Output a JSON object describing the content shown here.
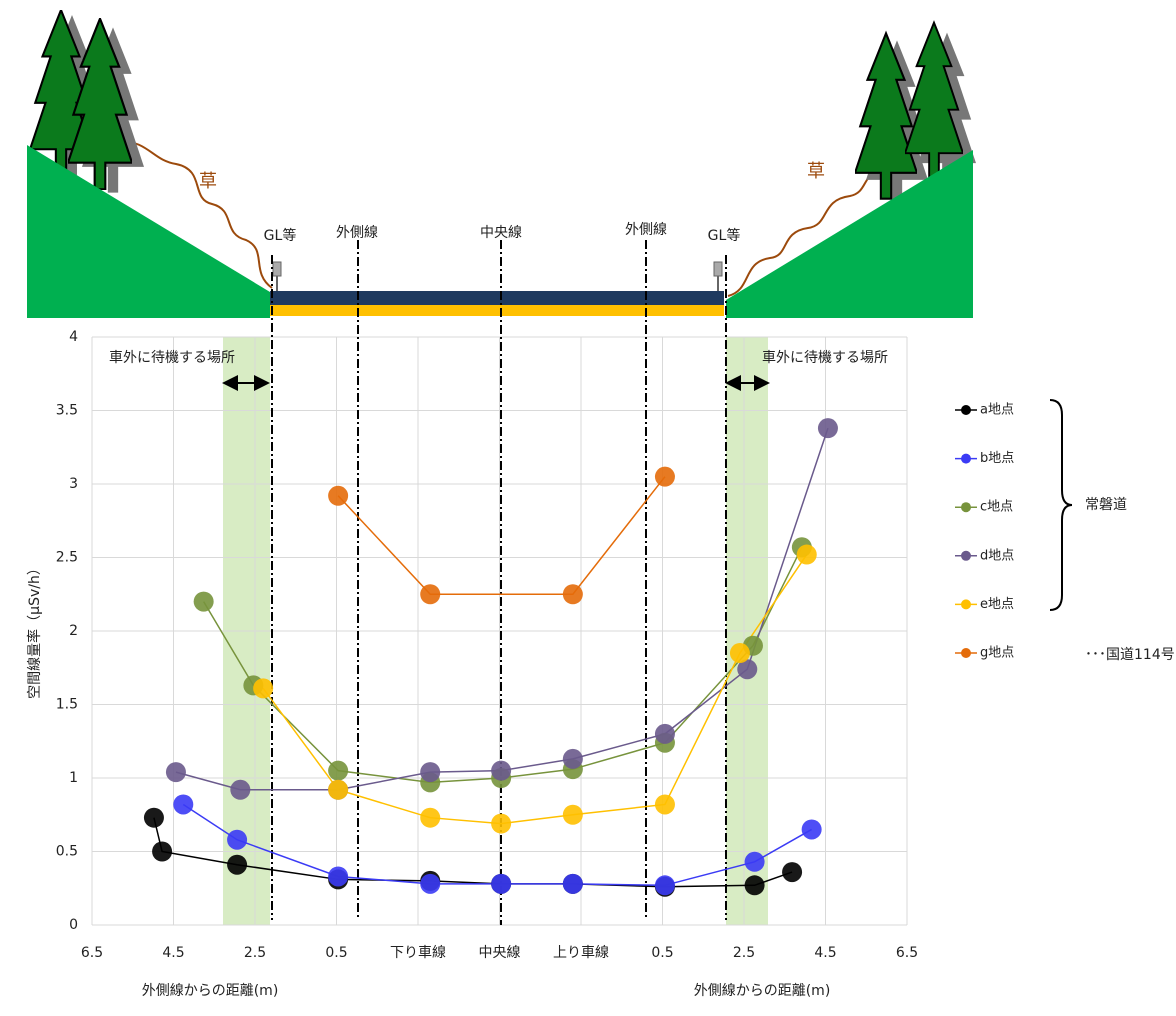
{
  "chart_data": {
    "type": "line",
    "y_label": "空間線量率（μSv/h）",
    "x_labels": [
      "外側線からの距離(m)",
      "外側線からの距離(m)"
    ],
    "xlim": [
      0,
      10
    ],
    "xticks": [
      {
        "value": 0,
        "label": "6.5"
      },
      {
        "value": 1,
        "label": "4.5"
      },
      {
        "value": 2,
        "label": "2.5"
      },
      {
        "value": 3,
        "label": "0.5"
      },
      {
        "value": 4,
        "label": "下り車線"
      },
      {
        "value": 5,
        "label": "中央線"
      },
      {
        "value": 6,
        "label": "上り車線"
      },
      {
        "value": 7,
        "label": "0.5"
      },
      {
        "value": 8,
        "label": "2.5"
      },
      {
        "value": 9,
        "label": "4.5"
      },
      {
        "value": 10,
        "label": "6.5"
      }
    ],
    "ylim": [
      0,
      4
    ],
    "yticks": [
      0,
      0.5,
      1,
      1.5,
      2,
      2.5,
      3,
      3.5,
      4
    ],
    "grid": true,
    "series": [
      {
        "name": "a地点",
        "color": "#000000",
        "x": [
          0.76,
          0.86,
          1.78,
          3.02,
          4.15,
          5.02,
          5.9,
          7.03,
          8.13,
          8.59
        ],
        "values": [
          0.73,
          0.5,
          0.41,
          0.31,
          0.3,
          0.28,
          0.28,
          0.26,
          0.27,
          0.36
        ]
      },
      {
        "name": "b地点",
        "color": "#3b3bf5",
        "x": [
          1.12,
          1.78,
          3.02,
          4.15,
          5.02,
          5.9,
          7.03,
          8.13,
          8.83
        ],
        "values": [
          0.82,
          0.58,
          0.33,
          0.28,
          0.28,
          0.28,
          0.27,
          0.43,
          0.65
        ]
      },
      {
        "name": "c地点",
        "color": "#77933c",
        "x": [
          1.37,
          1.98,
          3.02,
          4.15,
          5.02,
          5.9,
          7.03,
          8.11,
          8.71
        ],
        "values": [
          2.2,
          1.63,
          1.05,
          0.97,
          1.0,
          1.06,
          1.24,
          1.9,
          2.57
        ]
      },
      {
        "name": "d地点",
        "color": "#6a5a8c",
        "x": [
          1.03,
          1.82,
          3.02,
          4.15,
          5.02,
          5.9,
          7.03,
          8.04,
          9.03
        ],
        "values": [
          1.04,
          0.92,
          0.92,
          1.04,
          1.05,
          1.13,
          1.3,
          1.74,
          3.38
        ]
      },
      {
        "name": "e地点",
        "color": "#ffc000",
        "x": [
          2.1,
          3.02,
          4.15,
          5.02,
          5.9,
          7.03,
          7.95,
          8.77
        ],
        "values": [
          1.61,
          0.92,
          0.73,
          0.69,
          0.75,
          0.82,
          1.85,
          2.52
        ]
      },
      {
        "name": "g地点",
        "color": "#e46c0a",
        "x": [
          3.02,
          4.15,
          5.9,
          7.03
        ],
        "values": [
          2.92,
          2.25,
          2.25,
          3.05
        ]
      }
    ],
    "annotations": [
      "車外に待機する場所",
      "車外に待機する場所"
    ],
    "legend_groups": [
      "常磐道",
      "･･･国道114号"
    ]
  },
  "illustration": {
    "labels": [
      "GL等",
      "外側線",
      "中央線",
      "外側線",
      "GL等",
      "草",
      "草"
    ]
  }
}
